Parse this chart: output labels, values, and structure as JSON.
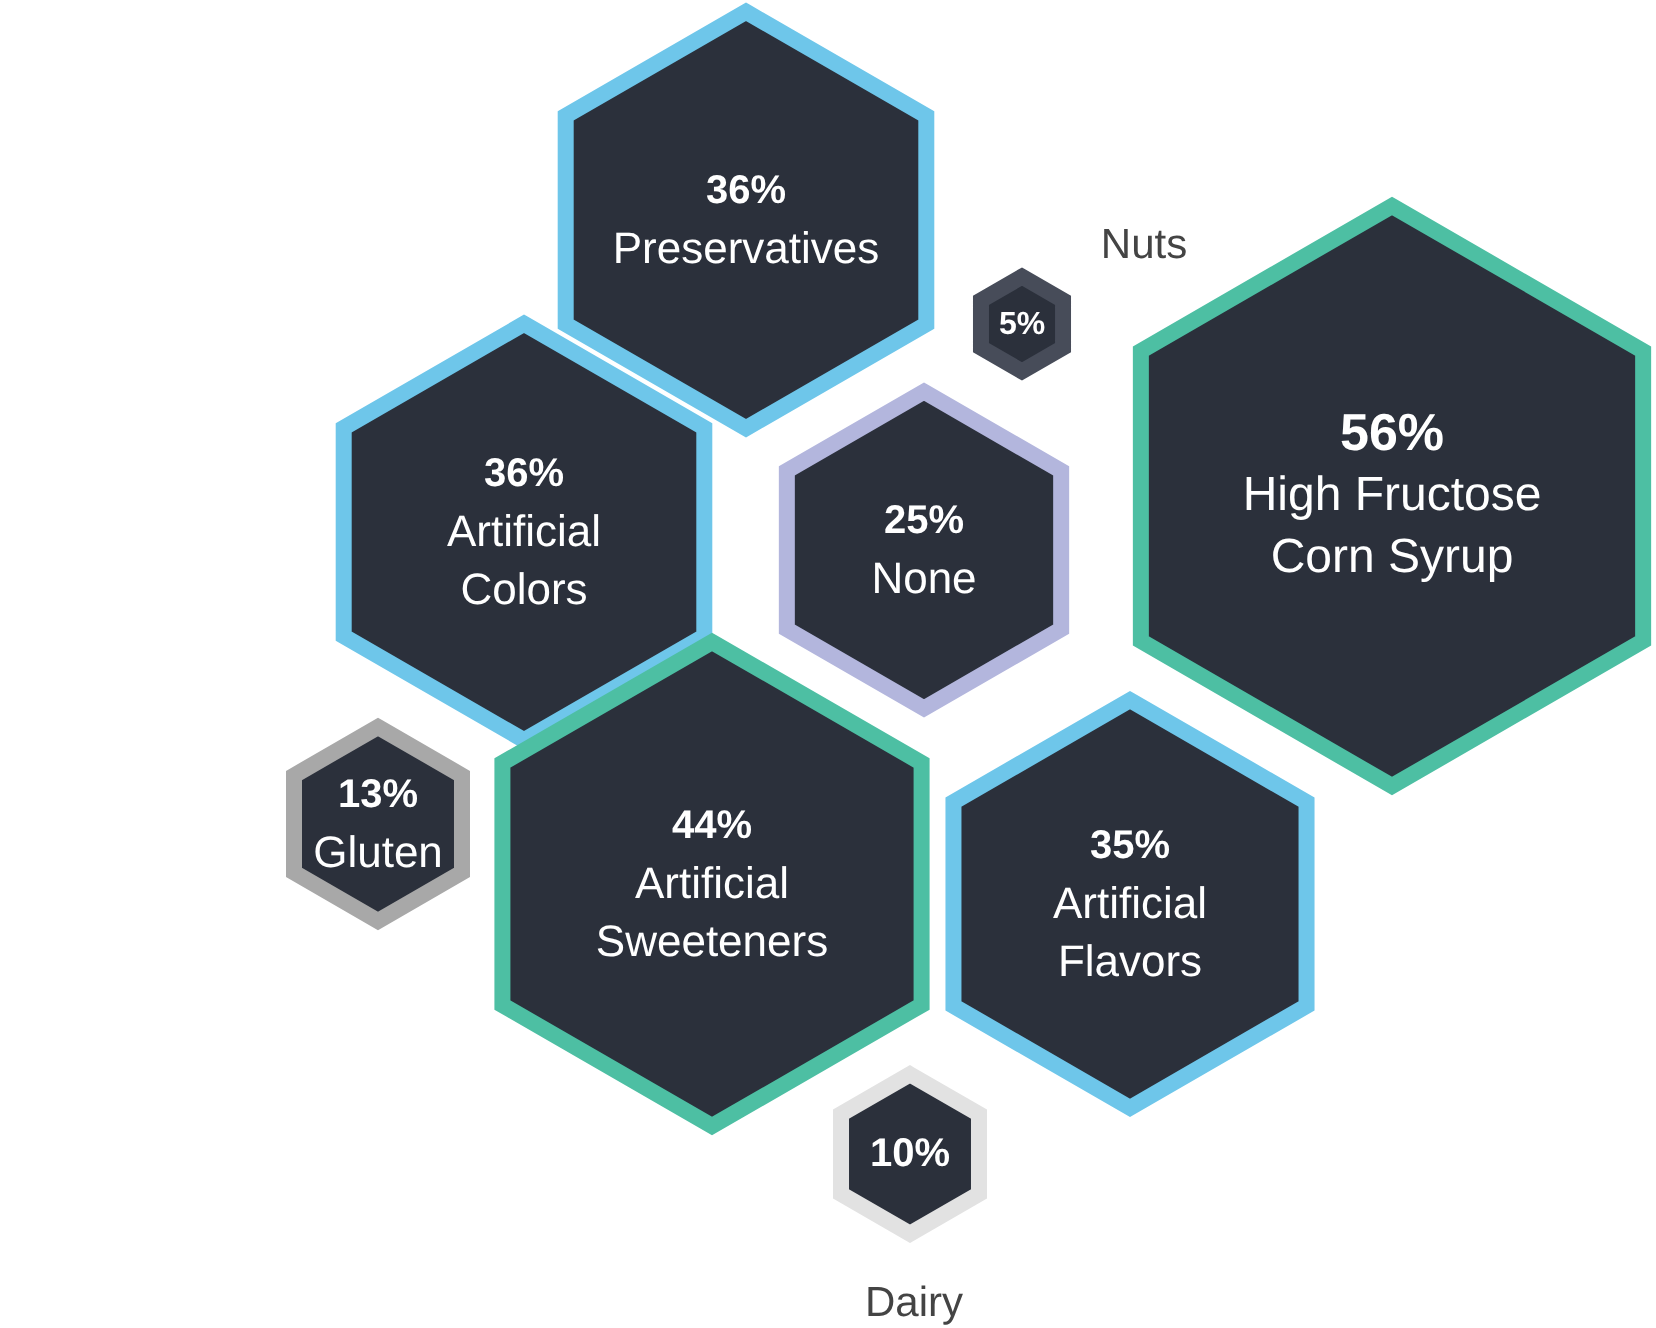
{
  "chart_data": {
    "type": "other",
    "categories": [
      "Preservatives",
      "Nuts",
      "High Fructose Corn Syrup",
      "Artificial Colors",
      "None",
      "Gluten",
      "Artificial Sweeteners",
      "Artificial Flavors",
      "Dairy"
    ],
    "values": [
      36,
      5,
      56,
      36,
      25,
      13,
      44,
      35,
      10
    ],
    "value_labels": [
      "36%",
      "5%",
      "56%",
      "36%",
      "25%",
      "13%",
      "44%",
      "35%",
      "10%"
    ],
    "colors": [
      "#6ec6ea",
      "#474c59",
      "#4dbfa3",
      "#6ec6ea",
      "#b3b6dd",
      "#a8a8a8",
      "#4dbfa3",
      "#6ec6ea",
      "#e2e2e2"
    ]
  }
}
